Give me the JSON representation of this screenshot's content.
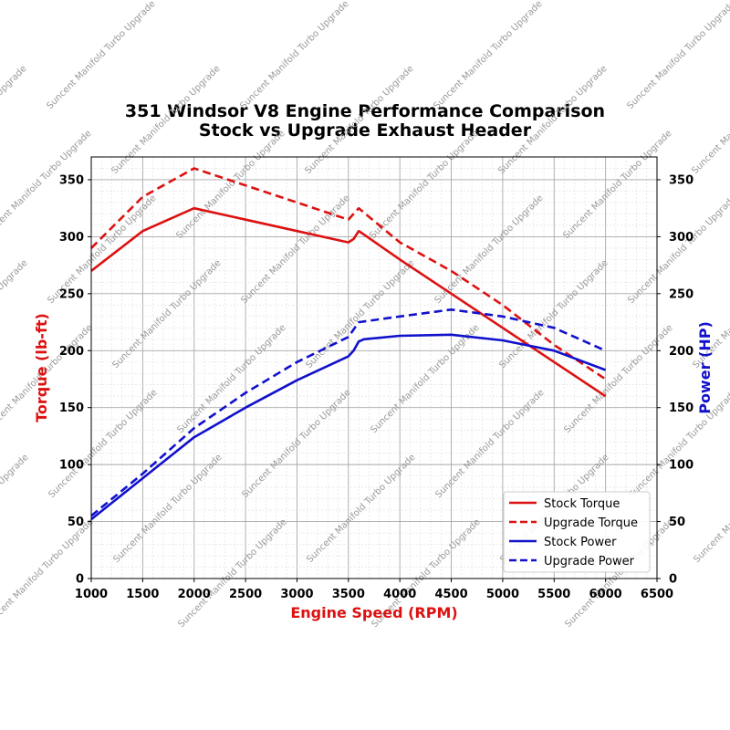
{
  "chart_data": {
    "type": "line",
    "title_line1": "351 Windsor V8 Engine Performance Comparison",
    "title_line2": "Stock vs Upgrade Exhaust Header",
    "xlabel": "Engine Speed (RPM)",
    "ylabel_left": "Torque (lb-ft)",
    "ylabel_right": "Power (HP)",
    "xlim": [
      1000,
      6500
    ],
    "ylim": [
      0,
      370
    ],
    "x_ticks": [
      1000,
      1500,
      2000,
      2500,
      3000,
      3500,
      4000,
      4500,
      5000,
      5500,
      6000,
      6500
    ],
    "y_ticks": [
      0,
      50,
      100,
      150,
      200,
      250,
      300,
      350
    ],
    "grid": true,
    "legend_position": "lower-right",
    "colors": {
      "torque": "#dd1111",
      "power": "#1111cc",
      "axis_x_label": "#dd1111",
      "axis_left_label": "#dd1111",
      "axis_right_label": "#1111cc"
    },
    "series": [
      {
        "name": "Stock Torque",
        "axis": "left",
        "style": "solid",
        "color": "#dd1111",
        "x": [
          1000,
          1500,
          2000,
          2500,
          3000,
          3500,
          3550,
          3600,
          3650,
          4000,
          4500,
          5000,
          5500,
          6000
        ],
        "y": [
          270,
          305,
          325,
          315,
          305,
          295,
          298,
          305,
          302,
          280,
          250,
          220,
          190,
          160
        ]
      },
      {
        "name": "Upgrade Torque",
        "axis": "left",
        "style": "dashed",
        "color": "#dd1111",
        "x": [
          1000,
          1500,
          2000,
          2500,
          3000,
          3500,
          3600,
          4000,
          4500,
          5000,
          5500,
          6000
        ],
        "y": [
          290,
          335,
          360,
          345,
          330,
          315,
          325,
          295,
          270,
          240,
          205,
          175
        ]
      },
      {
        "name": "Stock Power",
        "axis": "right",
        "style": "solid",
        "color": "#1111cc",
        "x": [
          1000,
          1500,
          2000,
          2500,
          3000,
          3500,
          3550,
          3600,
          3650,
          4000,
          4500,
          5000,
          5500,
          6000
        ],
        "y": [
          52,
          88,
          124,
          150,
          174,
          195,
          200,
          208,
          210,
          213,
          214,
          209,
          200,
          183
        ]
      },
      {
        "name": "Upgrade Power",
        "axis": "right",
        "style": "dashed",
        "color": "#1111cc",
        "x": [
          1000,
          1500,
          2000,
          2500,
          3000,
          3500,
          3600,
          4000,
          4500,
          5000,
          5500,
          6000
        ],
        "y": [
          55,
          92,
          132,
          163,
          190,
          212,
          225,
          230,
          236,
          230,
          220,
          200
        ]
      }
    ]
  },
  "watermark": "Suncent Manifold Turbo Upgrade"
}
